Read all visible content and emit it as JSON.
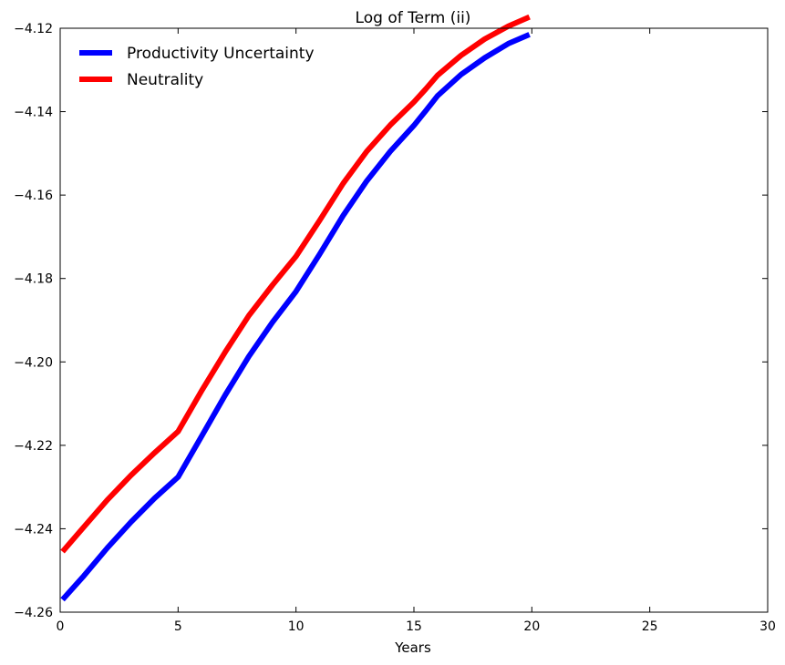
{
  "chart_data": {
    "type": "line",
    "title": "Log of Term (ii)",
    "xlabel": "Years",
    "ylabel": "",
    "xlim": [
      0,
      30
    ],
    "ylim": [
      -4.26,
      -4.12
    ],
    "xticks": [
      0,
      5,
      10,
      15,
      20,
      25,
      30
    ],
    "yticks": [
      -4.26,
      -4.24,
      -4.22,
      -4.2,
      -4.18,
      -4.16,
      -4.14,
      -4.12
    ],
    "xtick_labels": [
      "0",
      "5",
      "10",
      "15",
      "20",
      "25",
      "30"
    ],
    "ytick_labels": [
      "−4.26",
      "−4.24",
      "−4.22",
      "−4.20",
      "−4.18",
      "−4.16",
      "−4.14",
      "−4.12"
    ],
    "grid": false,
    "legend_position": "top-left",
    "series": [
      {
        "name": "Productivity Uncertainty",
        "color": "#0000ff",
        "x": [
          0.1,
          1,
          2,
          3,
          4,
          5,
          6,
          7,
          8,
          9,
          10,
          11,
          12,
          13,
          14,
          15,
          15.5,
          16,
          17,
          18,
          19,
          19.9
        ],
        "y": [
          -4.257,
          -4.2513,
          -4.2446,
          -4.2384,
          -4.2327,
          -4.2276,
          -4.2178,
          -4.2079,
          -4.1987,
          -4.1905,
          -4.1831,
          -4.1742,
          -4.1649,
          -4.1566,
          -4.1495,
          -4.1433,
          -4.1398,
          -4.1362,
          -4.1311,
          -4.1271,
          -4.1237,
          -4.1215
        ]
      },
      {
        "name": "Neutrality",
        "color": "#ff0000",
        "x": [
          0.1,
          1,
          2,
          3,
          4,
          5,
          6,
          7,
          8,
          9,
          10,
          11,
          12,
          13,
          14,
          15,
          15.5,
          16,
          17,
          18,
          19,
          19.9
        ],
        "y": [
          -4.2455,
          -4.2396,
          -4.2331,
          -4.2272,
          -4.2218,
          -4.2167,
          -4.2069,
          -4.1976,
          -4.1889,
          -4.1816,
          -4.1747,
          -4.1661,
          -4.1572,
          -4.1495,
          -4.1432,
          -4.1377,
          -4.1346,
          -4.1313,
          -4.1265,
          -4.1226,
          -4.1195,
          -4.1173
        ]
      }
    ]
  }
}
